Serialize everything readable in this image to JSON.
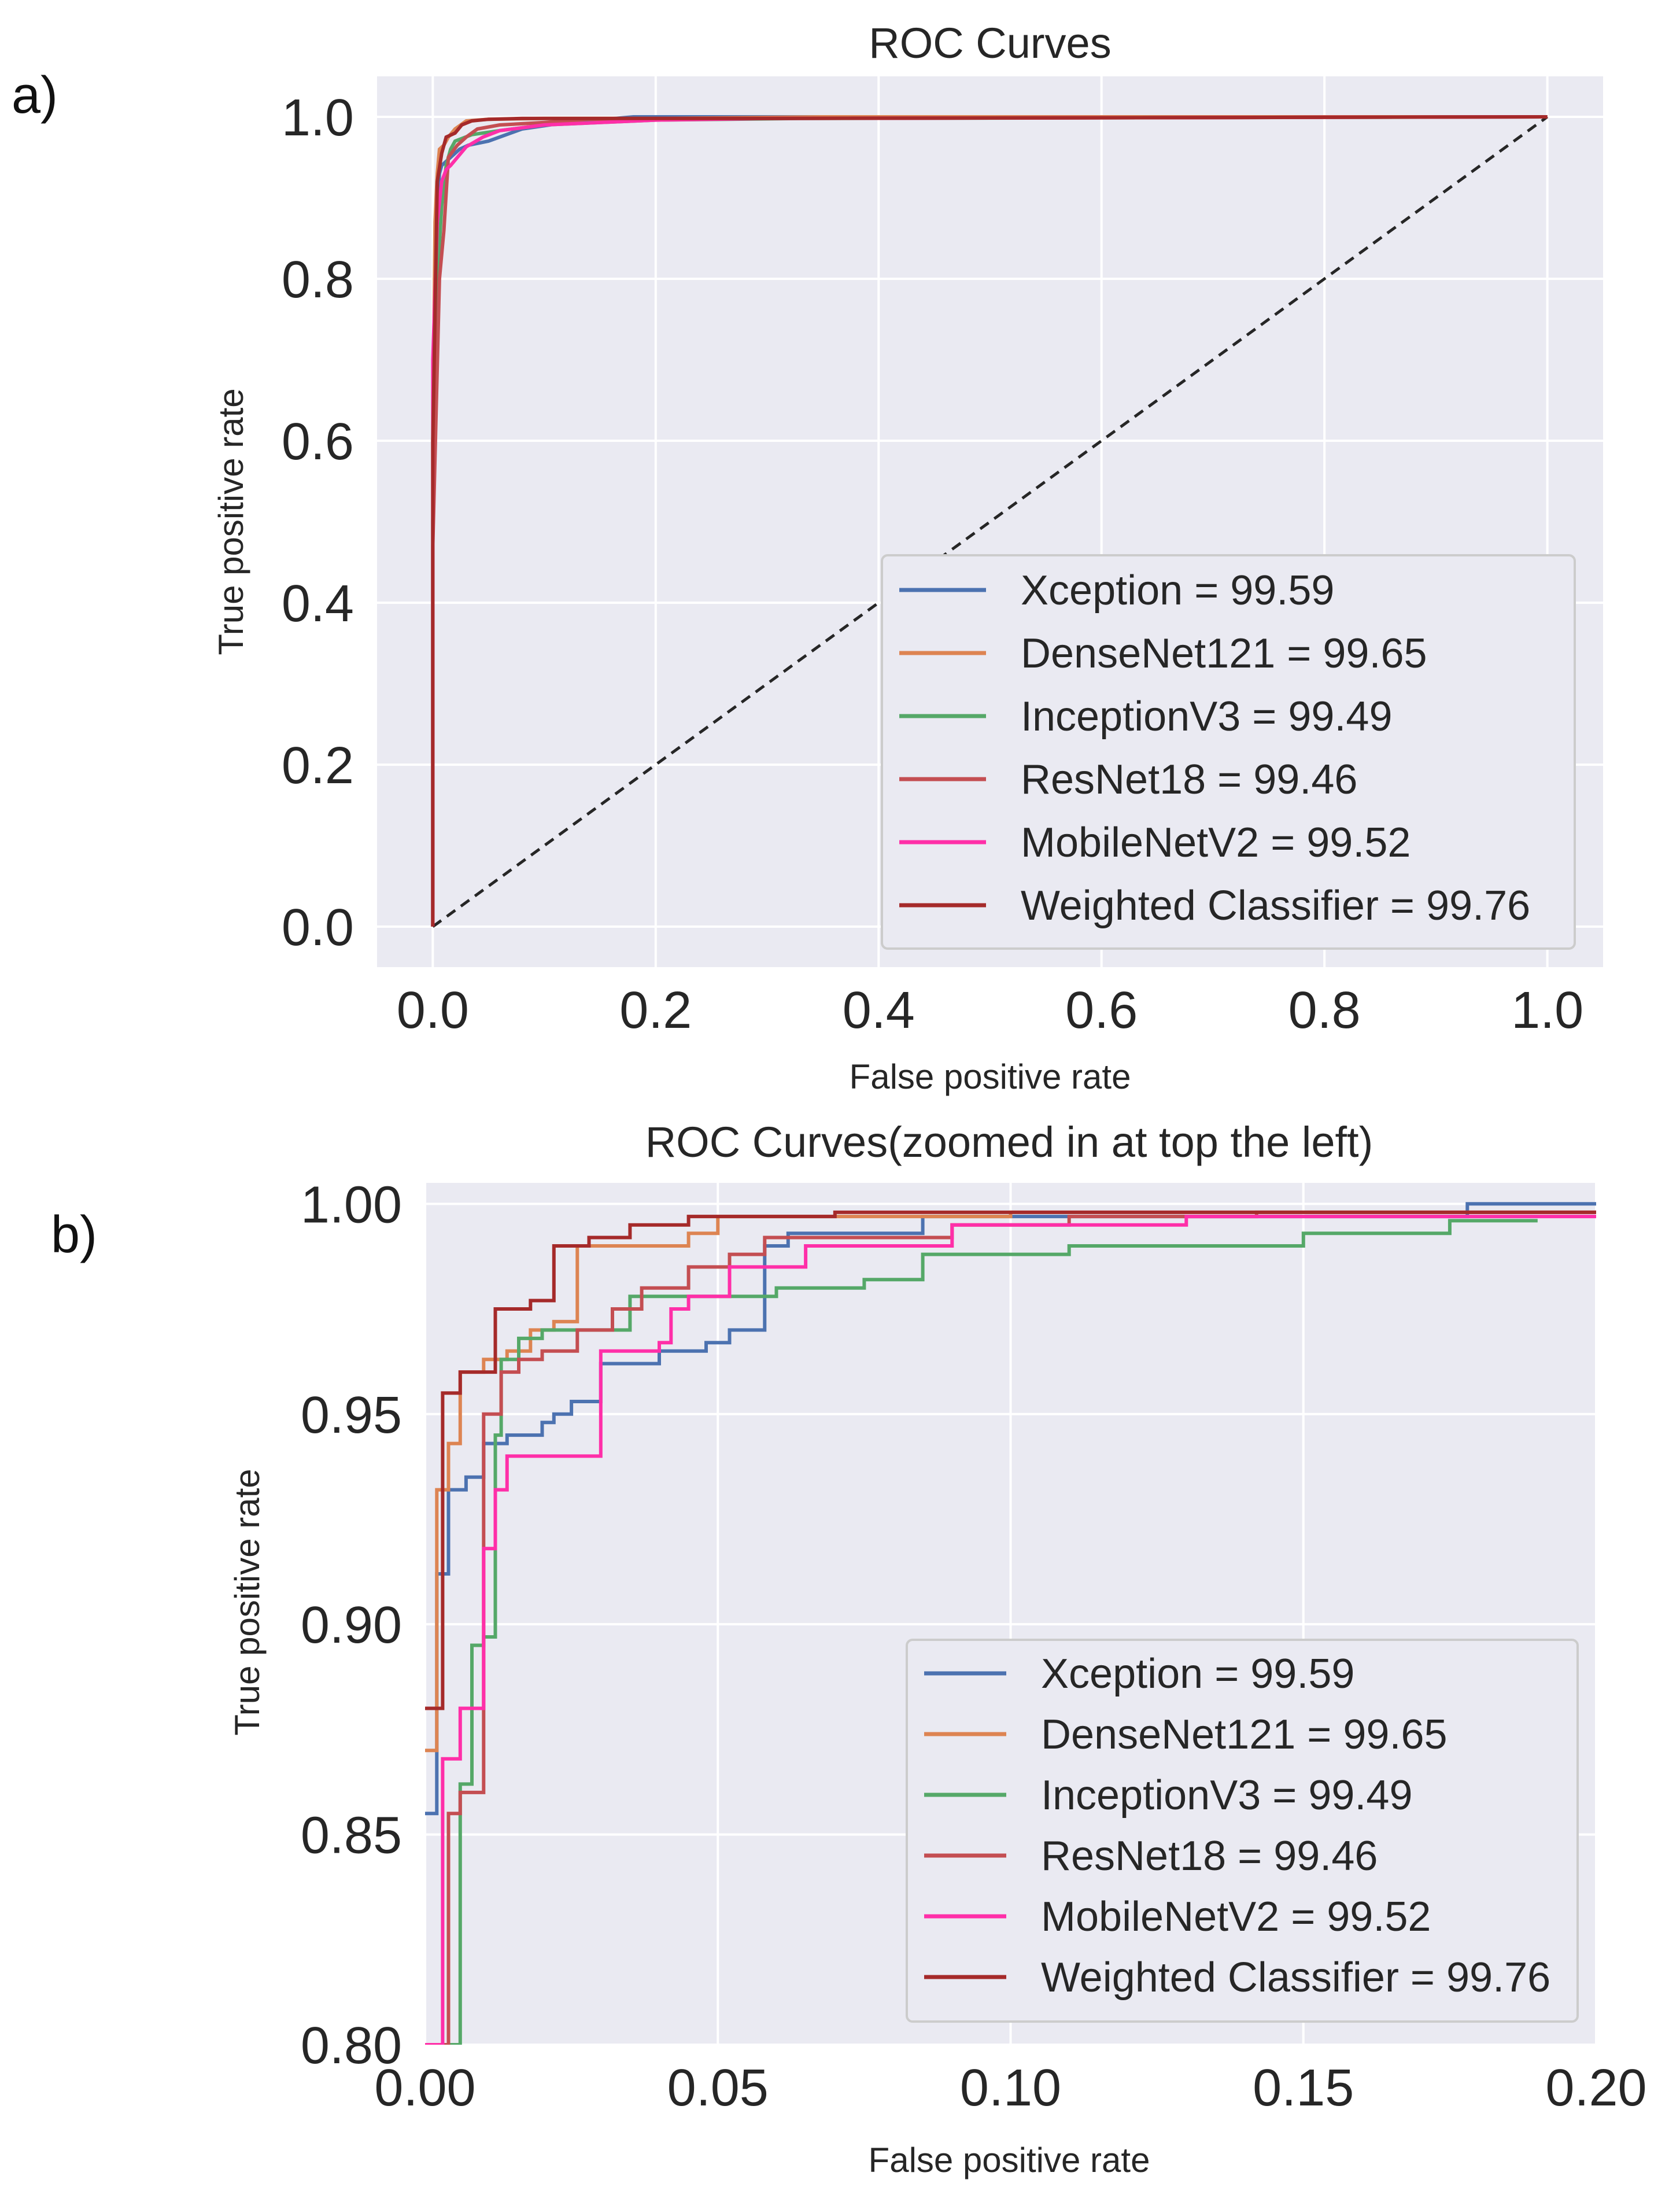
{
  "chart_data": [
    {
      "panel_label": "a)",
      "type": "line",
      "title": "ROC Curves",
      "xlabel": "False positive rate",
      "ylabel": "True positive rate",
      "xlim": [
        -0.05,
        1.05
      ],
      "ylim": [
        -0.05,
        1.05
      ],
      "xticks": [
        0.0,
        0.2,
        0.4,
        0.6,
        0.8,
        1.0
      ],
      "xtick_labels": [
        "0.0",
        "0.2",
        "0.4",
        "0.6",
        "0.8",
        "1.0"
      ],
      "yticks": [
        0.0,
        0.2,
        0.4,
        0.6,
        0.8,
        1.0
      ],
      "ytick_labels": [
        "0.0",
        "0.2",
        "0.4",
        "0.6",
        "0.8",
        "1.0"
      ],
      "grid": true,
      "legend_position": "lower-right",
      "chance_line": {
        "x": [
          0,
          1
        ],
        "y": [
          0,
          1
        ],
        "style": "dashed",
        "color": "#262626"
      },
      "series": [
        {
          "name": "Xception = 99.59",
          "color": "#4c72b0",
          "x": [
            0,
            0,
            0.002,
            0.004,
            0.006,
            0.008,
            0.012,
            0.016,
            0.024,
            0.032,
            0.05,
            0.08,
            0.12,
            0.18,
            0.3,
            1.0
          ],
          "y": [
            0,
            0.5,
            0.855,
            0.88,
            0.93,
            0.94,
            0.945,
            0.95,
            0.96,
            0.965,
            0.97,
            0.985,
            0.993,
            1.0,
            1.0,
            1.0
          ]
        },
        {
          "name": "DenseNet121 = 99.65",
          "color": "#dd8452",
          "x": [
            0,
            0,
            0.002,
            0.004,
            0.006,
            0.01,
            0.014,
            0.02,
            0.03,
            0.05,
            0.1,
            0.2,
            0.35,
            1.0
          ],
          "y": [
            0,
            0.6,
            0.87,
            0.93,
            0.96,
            0.965,
            0.975,
            0.985,
            0.995,
            0.997,
            0.998,
            0.998,
            1.0,
            1.0
          ]
        },
        {
          "name": "InceptionV3 = 99.49",
          "color": "#55a868",
          "x": [
            0,
            0,
            0.004,
            0.008,
            0.012,
            0.016,
            0.02,
            0.035,
            0.06,
            0.1,
            0.2,
            0.33,
            1.0
          ],
          "y": [
            0,
            0.5,
            0.8,
            0.89,
            0.94,
            0.96,
            0.97,
            0.978,
            0.983,
            0.99,
            0.996,
            0.998,
            1.0
          ]
        },
        {
          "name": "ResNet18 = 99.46",
          "color": "#c44e52",
          "x": [
            0,
            0,
            0.006,
            0.01,
            0.014,
            0.022,
            0.03,
            0.04,
            0.06,
            0.1,
            0.14,
            0.25,
            1.0
          ],
          "y": [
            0,
            0.47,
            0.8,
            0.86,
            0.95,
            0.965,
            0.975,
            0.985,
            0.99,
            0.993,
            0.997,
            0.998,
            1.0
          ]
        },
        {
          "name": "MobileNetV2 = 99.52",
          "color": "#ff2fa8",
          "x": [
            0,
            0,
            0.004,
            0.008,
            0.012,
            0.016,
            0.03,
            0.045,
            0.06,
            0.1,
            0.2,
            0.3,
            1.0
          ],
          "y": [
            0,
            0.7,
            0.87,
            0.92,
            0.935,
            0.94,
            0.963,
            0.975,
            0.983,
            0.99,
            0.996,
            0.998,
            1.0
          ]
        },
        {
          "name": "Weighted Classifier = 99.76",
          "color": "#a52a2a",
          "x": [
            0,
            0,
            0.004,
            0.008,
            0.012,
            0.02,
            0.026,
            0.035,
            0.05,
            0.08,
            0.15,
            0.3,
            1.0
          ],
          "y": [
            0,
            0.6,
            0.92,
            0.955,
            0.975,
            0.98,
            0.99,
            0.995,
            0.997,
            0.998,
            0.998,
            0.998,
            1.0
          ]
        }
      ]
    },
    {
      "panel_label": "b)",
      "type": "line",
      "title": "ROC Curves(zoomed in at top the left)",
      "xlabel": "False positive rate",
      "ylabel": "True positive rate",
      "xlim": [
        0.0,
        0.2
      ],
      "ylim": [
        0.8,
        1.005
      ],
      "xticks": [
        0.0,
        0.05,
        0.1,
        0.15,
        0.2
      ],
      "xtick_labels": [
        "0.00",
        "0.05",
        "0.10",
        "0.15",
        "0.20"
      ],
      "yticks": [
        0.8,
        0.85,
        0.9,
        0.95,
        1.0
      ],
      "ytick_labels": [
        "0.80",
        "0.85",
        "0.90",
        "0.95",
        "1.00"
      ],
      "grid": true,
      "legend_position": "lower-right",
      "series": [
        {
          "name": "Xception = 99.59",
          "color": "#4c72b0",
          "x": [
            0.0,
            0.002,
            0.002,
            0.004,
            0.004,
            0.007,
            0.007,
            0.01,
            0.01,
            0.014,
            0.014,
            0.02,
            0.02,
            0.022,
            0.022,
            0.025,
            0.025,
            0.03,
            0.03,
            0.04,
            0.04,
            0.048,
            0.048,
            0.052,
            0.052,
            0.058,
            0.058,
            0.062,
            0.062,
            0.085,
            0.085,
            0.178,
            0.178,
            0.2
          ],
          "y": [
            0.855,
            0.855,
            0.912,
            0.912,
            0.932,
            0.932,
            0.935,
            0.935,
            0.943,
            0.943,
            0.945,
            0.945,
            0.948,
            0.948,
            0.95,
            0.95,
            0.953,
            0.953,
            0.962,
            0.962,
            0.965,
            0.965,
            0.967,
            0.967,
            0.97,
            0.97,
            0.99,
            0.99,
            0.993,
            0.993,
            0.997,
            0.997,
            1.0,
            1.0
          ]
        },
        {
          "name": "DenseNet121 = 99.65",
          "color": "#dd8452",
          "x": [
            0.0,
            0.002,
            0.002,
            0.004,
            0.004,
            0.006,
            0.006,
            0.01,
            0.01,
            0.014,
            0.014,
            0.018,
            0.018,
            0.022,
            0.022,
            0.026,
            0.026,
            0.045,
            0.045,
            0.05,
            0.05,
            0.1,
            0.1,
            0.2
          ],
          "y": [
            0.87,
            0.87,
            0.932,
            0.932,
            0.943,
            0.943,
            0.96,
            0.96,
            0.963,
            0.963,
            0.965,
            0.965,
            0.97,
            0.97,
            0.972,
            0.972,
            0.99,
            0.99,
            0.993,
            0.993,
            0.997,
            0.997,
            0.998,
            0.998
          ]
        },
        {
          "name": "InceptionV3 = 99.49",
          "color": "#55a868",
          "x": [
            0.0,
            0.006,
            0.006,
            0.008,
            0.008,
            0.01,
            0.01,
            0.012,
            0.012,
            0.013,
            0.013,
            0.016,
            0.016,
            0.02,
            0.02,
            0.035,
            0.035,
            0.06,
            0.06,
            0.075,
            0.075,
            0.085,
            0.085,
            0.11,
            0.11,
            0.15,
            0.15,
            0.175,
            0.175,
            0.19
          ],
          "y": [
            0.8,
            0.8,
            0.862,
            0.862,
            0.895,
            0.895,
            0.897,
            0.897,
            0.945,
            0.945,
            0.963,
            0.963,
            0.968,
            0.968,
            0.97,
            0.97,
            0.978,
            0.978,
            0.98,
            0.98,
            0.982,
            0.982,
            0.988,
            0.988,
            0.99,
            0.99,
            0.993,
            0.993,
            0.996,
            0.996
          ]
        },
        {
          "name": "ResNet18 = 99.46",
          "color": "#c44e52",
          "x": [
            0.0,
            0.004,
            0.004,
            0.006,
            0.006,
            0.01,
            0.01,
            0.013,
            0.013,
            0.016,
            0.016,
            0.02,
            0.02,
            0.026,
            0.026,
            0.032,
            0.032,
            0.037,
            0.037,
            0.045,
            0.045,
            0.052,
            0.052,
            0.058,
            0.058,
            0.09,
            0.09,
            0.11,
            0.11,
            0.142,
            0.142,
            0.2
          ],
          "y": [
            0.8,
            0.8,
            0.855,
            0.855,
            0.86,
            0.86,
            0.95,
            0.95,
            0.96,
            0.96,
            0.963,
            0.963,
            0.965,
            0.965,
            0.97,
            0.97,
            0.975,
            0.975,
            0.98,
            0.98,
            0.985,
            0.985,
            0.988,
            0.988,
            0.992,
            0.992,
            0.995,
            0.995,
            0.997,
            0.997,
            0.998,
            0.998
          ]
        },
        {
          "name": "MobileNetV2 = 99.52",
          "color": "#ff2fa8",
          "x": [
            0.0,
            0.003,
            0.003,
            0.006,
            0.006,
            0.01,
            0.01,
            0.012,
            0.012,
            0.014,
            0.014,
            0.02,
            0.02,
            0.03,
            0.03,
            0.04,
            0.04,
            0.042,
            0.042,
            0.045,
            0.045,
            0.052,
            0.052,
            0.065,
            0.065,
            0.09,
            0.09,
            0.13,
            0.13,
            0.2
          ],
          "y": [
            0.8,
            0.8,
            0.868,
            0.868,
            0.88,
            0.88,
            0.918,
            0.918,
            0.932,
            0.932,
            0.94,
            0.94,
            0.94,
            0.94,
            0.965,
            0.965,
            0.967,
            0.967,
            0.975,
            0.975,
            0.978,
            0.978,
            0.985,
            0.985,
            0.99,
            0.99,
            0.995,
            0.995,
            0.997,
            0.997
          ]
        },
        {
          "name": "Weighted Classifier = 99.76",
          "color": "#a52a2a",
          "x": [
            0.0,
            0.003,
            0.003,
            0.006,
            0.006,
            0.012,
            0.012,
            0.018,
            0.018,
            0.022,
            0.022,
            0.028,
            0.028,
            0.035,
            0.035,
            0.045,
            0.045,
            0.07,
            0.07,
            0.2
          ],
          "y": [
            0.88,
            0.88,
            0.955,
            0.955,
            0.96,
            0.96,
            0.975,
            0.975,
            0.977,
            0.977,
            0.99,
            0.99,
            0.992,
            0.992,
            0.995,
            0.995,
            0.997,
            0.997,
            0.998,
            0.998
          ]
        }
      ]
    }
  ]
}
